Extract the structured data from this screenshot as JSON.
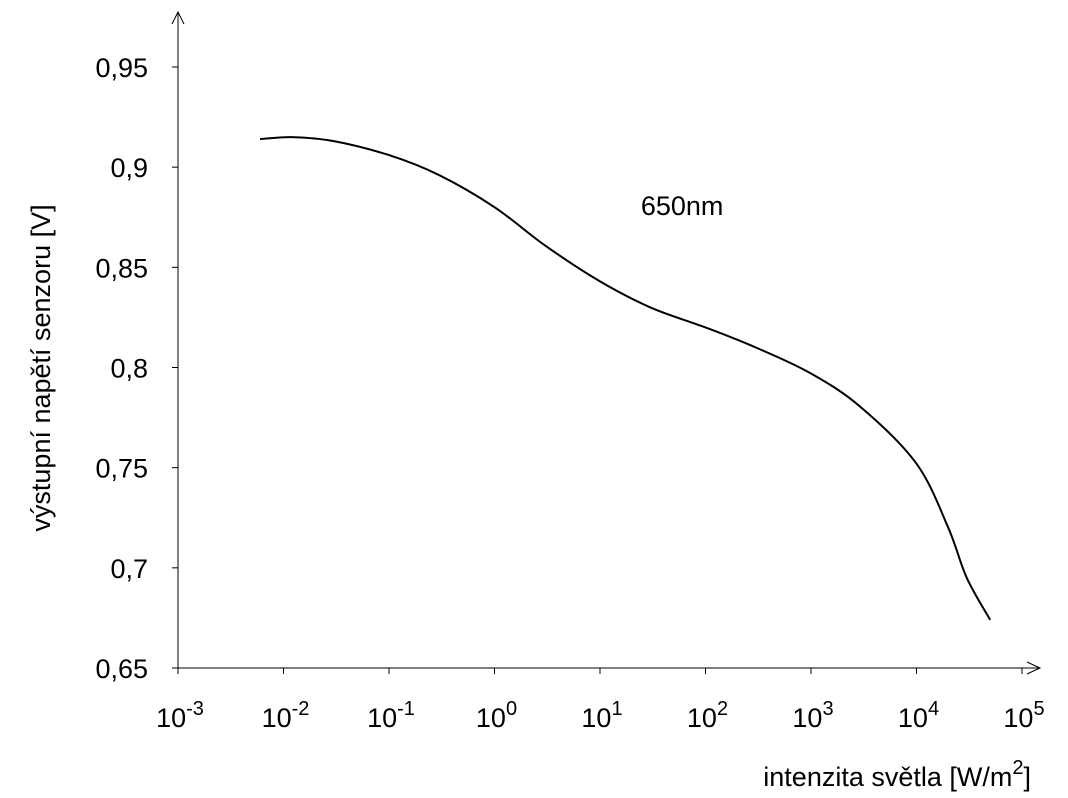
{
  "chart_data": {
    "type": "line",
    "title": "",
    "xlabel": "intenzita světla [W/m",
    "xlabel_sup": "2",
    "xlabel_suffix": "]",
    "ylabel": "výstupní napětí senzoru [V]",
    "x_scale": "log",
    "xlim": [
      0.001,
      100000
    ],
    "ylim": [
      0.65,
      0.95
    ],
    "grid": false,
    "x_ticks": [
      {
        "value": 0.001,
        "base": "10",
        "exp": "-3"
      },
      {
        "value": 0.01,
        "base": "10",
        "exp": "-2"
      },
      {
        "value": 0.1,
        "base": "10",
        "exp": "-1"
      },
      {
        "value": 1,
        "base": "10",
        "exp": "0"
      },
      {
        "value": 10,
        "base": "10",
        "exp": "1"
      },
      {
        "value": 100,
        "base": "10",
        "exp": "2"
      },
      {
        "value": 1000,
        "base": "10",
        "exp": "3"
      },
      {
        "value": 10000,
        "base": "10",
        "exp": "4"
      },
      {
        "value": 100000,
        "base": "10",
        "exp": "5"
      }
    ],
    "y_ticks": [
      {
        "value": 0.65,
        "label": "0,65"
      },
      {
        "value": 0.7,
        "label": "0,7"
      },
      {
        "value": 0.75,
        "label": "0,75"
      },
      {
        "value": 0.8,
        "label": "0,8"
      },
      {
        "value": 0.85,
        "label": "0,85"
      },
      {
        "value": 0.9,
        "label": "0,9"
      },
      {
        "value": 0.95,
        "label": "0,95"
      }
    ],
    "series": [
      {
        "name": "650nm",
        "color": "#000000",
        "x": [
          0.006,
          0.012,
          0.03,
          0.1,
          0.3,
          1,
          3,
          10,
          30,
          100,
          300,
          1000,
          3000,
          10000,
          20000,
          30000,
          50000
        ],
        "y": [
          0.914,
          0.915,
          0.913,
          0.906,
          0.896,
          0.88,
          0.861,
          0.843,
          0.83,
          0.82,
          0.81,
          0.797,
          0.78,
          0.752,
          0.72,
          0.695,
          0.674
        ]
      }
    ],
    "annotations": [
      {
        "text": "650nm",
        "x": 60,
        "y": 0.876
      }
    ]
  }
}
